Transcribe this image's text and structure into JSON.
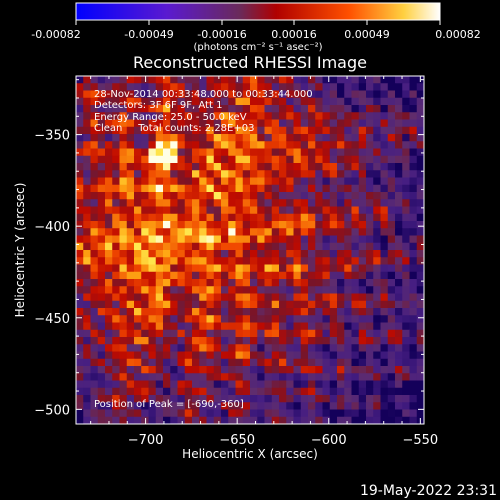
{
  "colorbar": {
    "tick_labels": [
      "-0.00082",
      "-0.00049",
      "-0.00016",
      "0.00016",
      "0.00049",
      "0.00082"
    ],
    "unit_label": "(photons cm⁻² s⁻¹ asec⁻²)",
    "colors": [
      "#0000ff",
      "#5a1ad0",
      "#6a2a5a",
      "#b00000",
      "#ff5000",
      "#ffd040",
      "#ffffff"
    ]
  },
  "title": "Reconstructed RHESSI Image",
  "annotations": {
    "time_range": "28-Nov-2014 00:33:48.000 to 00:33:44.000",
    "detectors": "Detectors: 3F 6F 9F, Att 1",
    "energy_range": "Energy Range: 25.0 - 50.0 keV",
    "clean_counts": "Clean     Total counts: 2.28E+03",
    "peak_position": "Position of Peak = [-690,-360]"
  },
  "footer_timestamp": "19-May-2022 23:31",
  "chart_data": {
    "type": "heatmap",
    "title": "Reconstructed RHESSI Image",
    "xlabel": "Heliocentric X (arcsec)",
    "ylabel": "Heliocentric Y (arcsec)",
    "xlim": [
      -738,
      -548
    ],
    "ylim": [
      -508,
      -318
    ],
    "x_ticks": [
      -700,
      -650,
      -600,
      -550
    ],
    "y_ticks": [
      -350,
      -400,
      -450,
      -500
    ],
    "x_tick_labels": [
      "−700",
      "−650",
      "−600",
      "−550"
    ],
    "y_tick_labels": [
      "−350",
      "−400",
      "−450",
      "−500"
    ],
    "value_range": [
      -0.00082,
      0.00082
    ],
    "peak": [
      -690,
      -360
    ],
    "grid": false
  }
}
